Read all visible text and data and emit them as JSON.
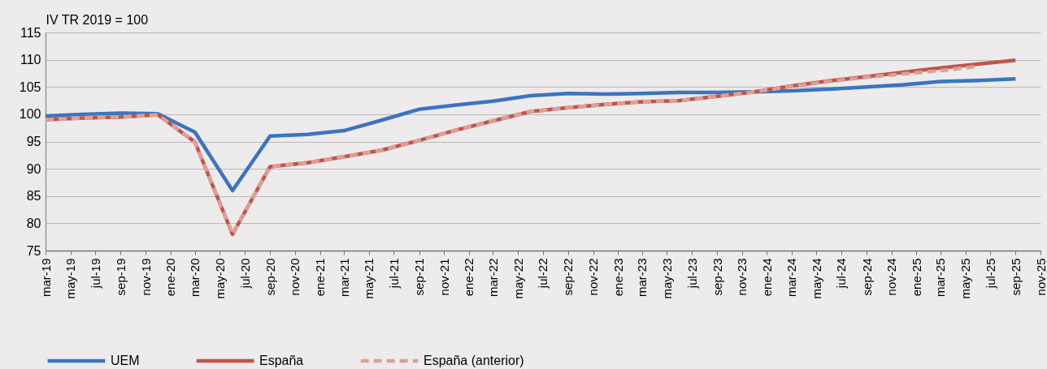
{
  "chart_data": {
    "type": "line",
    "ylabel": "IV TR 2019 = 100",
    "x": [
      "2019-03",
      "2019-06",
      "2019-09",
      "2019-12",
      "2020-03",
      "2020-06",
      "2020-09",
      "2020-12",
      "2021-03",
      "2021-06",
      "2021-09",
      "2021-12",
      "2022-03",
      "2022-06",
      "2022-09",
      "2022-12",
      "2023-03",
      "2023-06",
      "2023-09",
      "2023-12",
      "2024-03",
      "2024-06",
      "2024-09",
      "2024-12",
      "2025-03",
      "2025-06",
      "2025-09"
    ],
    "series": [
      {
        "name": "UEM",
        "color": "#3a75c0",
        "line_style": "solid",
        "values": [
          99.7,
          100.0,
          100.2,
          100.1,
          96.7,
          86.0,
          96.0,
          96.3,
          97.0,
          98.9,
          100.9,
          101.7,
          102.4,
          103.4,
          103.8,
          103.7,
          103.8,
          104.0,
          104.0,
          104.1,
          104.3,
          104.6,
          105.0,
          105.4,
          106.0,
          106.2,
          106.5
        ]
      },
      {
        "name": "España",
        "color": "#c0554a",
        "line_style": "solid",
        "values": [
          99.0,
          99.3,
          99.5,
          99.9,
          94.9,
          78.0,
          90.4,
          91.1,
          92.2,
          93.4,
          95.2,
          97.1,
          98.8,
          100.5,
          101.2,
          101.8,
          102.3,
          102.5,
          103.3,
          104.1,
          105.2,
          106.1,
          106.9,
          107.7,
          108.5,
          109.2,
          109.9
        ]
      },
      {
        "name": "España (anterior)",
        "color": "#dba097",
        "line_style": "dashed",
        "values": [
          99.0,
          99.3,
          99.5,
          99.9,
          94.9,
          78.0,
          90.4,
          91.1,
          92.2,
          93.4,
          95.2,
          97.1,
          98.8,
          100.5,
          101.2,
          101.8,
          102.3,
          102.5,
          103.3,
          104.1,
          105.1,
          106.0,
          106.8,
          107.4,
          108.0,
          108.8,
          null
        ]
      }
    ],
    "xlim": [
      "2019-03",
      "2025-11"
    ],
    "xticks": [
      {
        "value": "2019-03",
        "label": "mar-19"
      },
      {
        "value": "2019-05",
        "label": "may-19"
      },
      {
        "value": "2019-07",
        "label": "jul-19"
      },
      {
        "value": "2019-09",
        "label": "sep-19"
      },
      {
        "value": "2019-11",
        "label": "nov-19"
      },
      {
        "value": "2020-01",
        "label": "ene-20"
      },
      {
        "value": "2020-03",
        "label": "mar-20"
      },
      {
        "value": "2020-05",
        "label": "may-20"
      },
      {
        "value": "2020-07",
        "label": "jul-20"
      },
      {
        "value": "2020-09",
        "label": "sep-20"
      },
      {
        "value": "2020-11",
        "label": "nov-20"
      },
      {
        "value": "2021-01",
        "label": "ene-21"
      },
      {
        "value": "2021-03",
        "label": "mar-21"
      },
      {
        "value": "2021-05",
        "label": "may-21"
      },
      {
        "value": "2021-07",
        "label": "jul-21"
      },
      {
        "value": "2021-09",
        "label": "sep-21"
      },
      {
        "value": "2021-11",
        "label": "nov-21"
      },
      {
        "value": "2022-01",
        "label": "ene-22"
      },
      {
        "value": "2022-03",
        "label": "mar-22"
      },
      {
        "value": "2022-05",
        "label": "may-22"
      },
      {
        "value": "2022-07",
        "label": "jul-22"
      },
      {
        "value": "2022-09",
        "label": "sep-22"
      },
      {
        "value": "2022-11",
        "label": "nov-22"
      },
      {
        "value": "2023-01",
        "label": "ene-23"
      },
      {
        "value": "2023-03",
        "label": "mar-23"
      },
      {
        "value": "2023-05",
        "label": "may-23"
      },
      {
        "value": "2023-07",
        "label": "jul-23"
      },
      {
        "value": "2023-09",
        "label": "sep-23"
      },
      {
        "value": "2023-11",
        "label": "nov-23"
      },
      {
        "value": "2024-01",
        "label": "ene-24"
      },
      {
        "value": "2024-03",
        "label": "mar-24"
      },
      {
        "value": "2024-05",
        "label": "may-24"
      },
      {
        "value": "2024-07",
        "label": "jul-24"
      },
      {
        "value": "2024-09",
        "label": "sep-24"
      },
      {
        "value": "2024-11",
        "label": "nov-24"
      },
      {
        "value": "2025-01",
        "label": "ene-25"
      },
      {
        "value": "2025-03",
        "label": "mar-25"
      },
      {
        "value": "2025-05",
        "label": "may-25"
      },
      {
        "value": "2025-07",
        "label": "jul-25"
      },
      {
        "value": "2025-09",
        "label": "sep-25"
      },
      {
        "value": "2025-11",
        "label": "nov-25"
      }
    ],
    "ylim": [
      75,
      115
    ],
    "yticks": [
      75,
      80,
      85,
      90,
      95,
      100,
      105,
      110,
      115
    ],
    "grid": "y",
    "legend": "bottom"
  }
}
